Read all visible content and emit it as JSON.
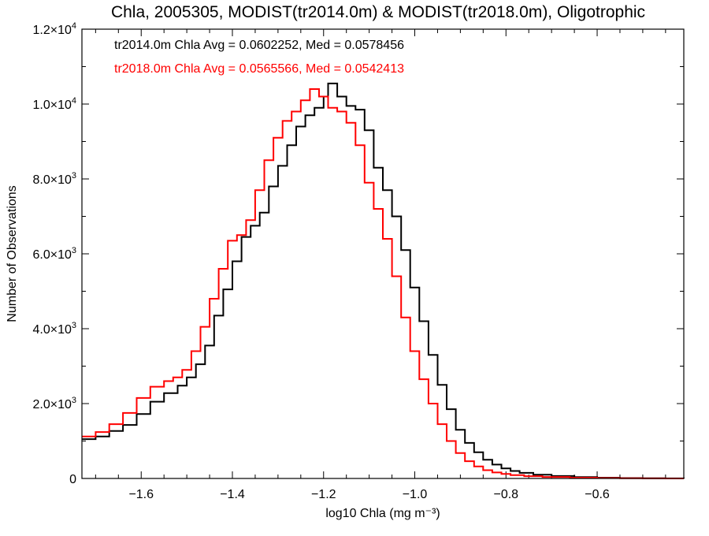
{
  "chart_data": {
    "type": "line",
    "title": "Chla, 2005305, MODIST(tr2014.0m) & MODIST(tr2018.0m), Oligotrophic",
    "xlabel": "log10 Chla (mg m⁻³)",
    "ylabel": "Number of Observations",
    "xlim": [
      -1.73,
      -0.41
    ],
    "ylim": [
      0,
      12000
    ],
    "xticks": [
      -1.6,
      -1.4,
      -1.2,
      -1.0,
      -0.8,
      -0.6
    ],
    "xtick_labels": [
      "−1.6",
      "−1.4",
      "−1.2",
      "−1.0",
      "−0.8",
      "−0.6"
    ],
    "yticks": [
      0,
      2000,
      4000,
      6000,
      8000,
      10000,
      12000
    ],
    "ytick_labels": [
      {
        "mant": "0",
        "exp": ""
      },
      {
        "mant": "2.0×10",
        "exp": "3"
      },
      {
        "mant": "4.0×10",
        "exp": "3"
      },
      {
        "mant": "6.0×10",
        "exp": "3"
      },
      {
        "mant": "8.0×10",
        "exp": "3"
      },
      {
        "mant": "1.0×10",
        "exp": "4"
      },
      {
        "mant": "1.2×10",
        "exp": "4"
      }
    ],
    "grid": false,
    "legend_position": "top-left",
    "series": [
      {
        "name": "tr2014.0m",
        "label": "tr2014.0m Chla Avg = 0.0602252, Med = 0.0578456",
        "color": "#000000",
        "points": [
          [
            -1.73,
            1050
          ],
          [
            -1.7,
            1120
          ],
          [
            -1.67,
            1270
          ],
          [
            -1.64,
            1430
          ],
          [
            -1.61,
            1720
          ],
          [
            -1.58,
            2050
          ],
          [
            -1.55,
            2280
          ],
          [
            -1.52,
            2480
          ],
          [
            -1.5,
            2700
          ],
          [
            -1.48,
            3050
          ],
          [
            -1.46,
            3550
          ],
          [
            -1.44,
            4350
          ],
          [
            -1.42,
            5050
          ],
          [
            -1.4,
            5800
          ],
          [
            -1.38,
            6450
          ],
          [
            -1.36,
            6750
          ],
          [
            -1.34,
            7100
          ],
          [
            -1.32,
            7800
          ],
          [
            -1.3,
            8350
          ],
          [
            -1.28,
            8900
          ],
          [
            -1.26,
            9400
          ],
          [
            -1.24,
            9700
          ],
          [
            -1.22,
            9900
          ],
          [
            -1.2,
            10200
          ],
          [
            -1.19,
            10550
          ],
          [
            -1.17,
            10200
          ],
          [
            -1.15,
            9950
          ],
          [
            -1.13,
            9850
          ],
          [
            -1.11,
            9300
          ],
          [
            -1.09,
            8300
          ],
          [
            -1.07,
            7700
          ],
          [
            -1.05,
            7000
          ],
          [
            -1.03,
            6100
          ],
          [
            -1.01,
            5100
          ],
          [
            -0.99,
            4200
          ],
          [
            -0.97,
            3300
          ],
          [
            -0.95,
            2500
          ],
          [
            -0.93,
            1850
          ],
          [
            -0.91,
            1300
          ],
          [
            -0.89,
            950
          ],
          [
            -0.87,
            700
          ],
          [
            -0.85,
            500
          ],
          [
            -0.83,
            370
          ],
          [
            -0.81,
            270
          ],
          [
            -0.79,
            200
          ],
          [
            -0.77,
            150
          ],
          [
            -0.74,
            100
          ],
          [
            -0.7,
            65
          ],
          [
            -0.65,
            35
          ],
          [
            -0.6,
            20
          ],
          [
            -0.55,
            10
          ],
          [
            -0.5,
            5
          ],
          [
            -0.45,
            2
          ],
          [
            -0.41,
            0
          ]
        ]
      },
      {
        "name": "tr2018.0m",
        "label": "tr2018.0m Chla Avg = 0.0565566, Med = 0.0542413",
        "color": "#ff0000",
        "points": [
          [
            -1.73,
            1120
          ],
          [
            -1.7,
            1240
          ],
          [
            -1.67,
            1450
          ],
          [
            -1.64,
            1750
          ],
          [
            -1.61,
            2150
          ],
          [
            -1.58,
            2450
          ],
          [
            -1.55,
            2600
          ],
          [
            -1.53,
            2700
          ],
          [
            -1.51,
            2900
          ],
          [
            -1.49,
            3400
          ],
          [
            -1.47,
            4050
          ],
          [
            -1.45,
            4800
          ],
          [
            -1.43,
            5600
          ],
          [
            -1.41,
            6350
          ],
          [
            -1.39,
            6500
          ],
          [
            -1.37,
            6900
          ],
          [
            -1.35,
            7700
          ],
          [
            -1.33,
            8500
          ],
          [
            -1.31,
            9100
          ],
          [
            -1.29,
            9550
          ],
          [
            -1.27,
            9800
          ],
          [
            -1.25,
            10100
          ],
          [
            -1.23,
            10400
          ],
          [
            -1.21,
            10200
          ],
          [
            -1.19,
            9900
          ],
          [
            -1.17,
            9800
          ],
          [
            -1.15,
            9500
          ],
          [
            -1.13,
            8900
          ],
          [
            -1.11,
            7900
          ],
          [
            -1.09,
            7200
          ],
          [
            -1.07,
            6400
          ],
          [
            -1.05,
            5400
          ],
          [
            -1.03,
            4300
          ],
          [
            -1.01,
            3400
          ],
          [
            -0.99,
            2650
          ],
          [
            -0.97,
            2000
          ],
          [
            -0.95,
            1450
          ],
          [
            -0.93,
            1000
          ],
          [
            -0.91,
            680
          ],
          [
            -0.89,
            460
          ],
          [
            -0.87,
            320
          ],
          [
            -0.85,
            220
          ],
          [
            -0.83,
            160
          ],
          [
            -0.81,
            120
          ],
          [
            -0.79,
            90
          ],
          [
            -0.76,
            60
          ],
          [
            -0.72,
            40
          ],
          [
            -0.66,
            20
          ],
          [
            -0.6,
            10
          ],
          [
            -0.55,
            5
          ],
          [
            -0.5,
            2
          ],
          [
            -0.45,
            1
          ],
          [
            -0.41,
            0
          ]
        ]
      }
    ]
  }
}
